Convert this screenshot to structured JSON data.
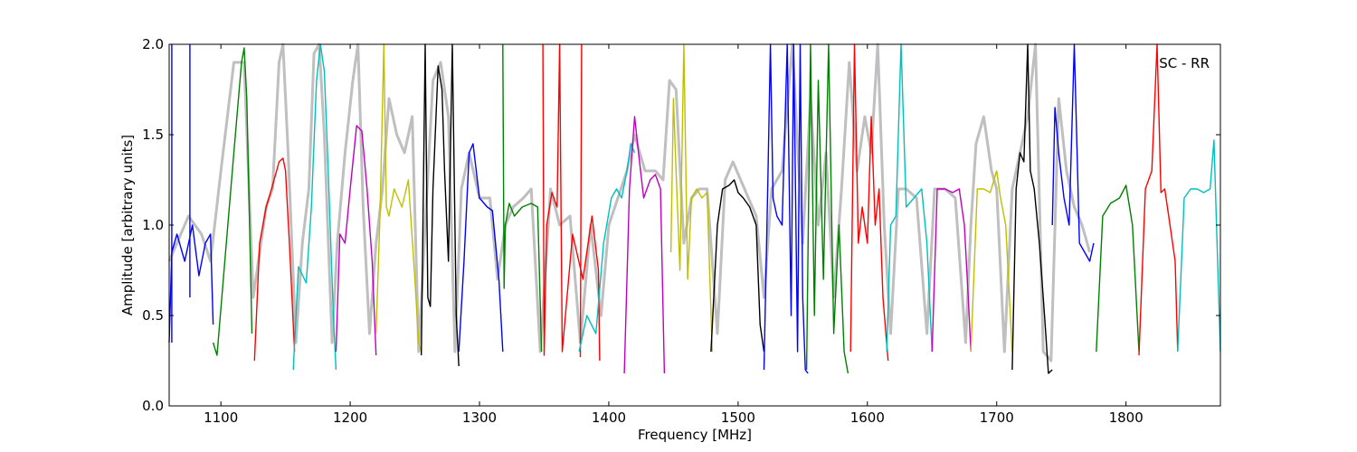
{
  "chart_data": {
    "type": "line",
    "title": "",
    "xlabel": "Frequency [MHz]",
    "ylabel": "Amplitude [arbitrary units]",
    "annotation": "SC - RR",
    "annotation_position": "top-right",
    "xlim": [
      1060,
      1873
    ],
    "ylim": [
      0.0,
      2.0
    ],
    "x_ticks": [
      1100,
      1200,
      1300,
      1400,
      1500,
      1600,
      1700,
      1800
    ],
    "x_tick_labels": [
      "1100",
      "1200",
      "1300",
      "1400",
      "1500",
      "1600",
      "1700",
      "1800"
    ],
    "y_ticks": [
      0.0,
      0.5,
      1.0,
      1.5,
      2.0
    ],
    "y_tick_labels": [
      "0.0",
      "0.5",
      "1.0",
      "1.5",
      "2.0"
    ],
    "grid": false,
    "colors": {
      "blue": "#0000ff",
      "green": "#008000",
      "red": "#ff0000",
      "cyan": "#00bfbf",
      "magenta": "#bf00bf",
      "olive": "#bfbf00",
      "black": "#000000",
      "envelope": "#bfbfbf"
    },
    "envelope": {
      "x": [
        1060,
        1075,
        1085,
        1092,
        1100,
        1110,
        1118,
        1125,
        1135,
        1140,
        1145,
        1148,
        1152,
        1158,
        1163,
        1168,
        1172,
        1176,
        1180,
        1186,
        1190,
        1196,
        1202,
        1206,
        1210,
        1215,
        1220,
        1225,
        1230,
        1236,
        1242,
        1248,
        1253,
        1258,
        1264,
        1270,
        1276,
        1281,
        1286,
        1292,
        1300,
        1308,
        1314,
        1320,
        1326,
        1334,
        1340,
        1347,
        1355,
        1362,
        1370,
        1378,
        1386,
        1394,
        1400,
        1407,
        1414,
        1420,
        1428,
        1436,
        1442,
        1447,
        1452,
        1458,
        1464,
        1470,
        1476,
        1484,
        1490,
        1496,
        1502,
        1508,
        1514,
        1520,
        1526,
        1534,
        1542,
        1550,
        1556,
        1562,
        1568,
        1574,
        1580,
        1586,
        1592,
        1598,
        1603,
        1608,
        1613,
        1618,
        1624,
        1630,
        1638,
        1646,
        1652,
        1660,
        1668,
        1676,
        1680,
        1684,
        1690,
        1696,
        1700,
        1706,
        1712,
        1718,
        1724,
        1730,
        1736,
        1742,
        1748,
        1754,
        1760,
        1766,
        1772
      ],
      "y": [
        0.8,
        1.05,
        0.95,
        0.8,
        1.3,
        1.9,
        1.9,
        0.6,
        1.1,
        1.2,
        1.9,
        2.0,
        1.4,
        0.35,
        0.9,
        1.2,
        1.95,
        2.0,
        1.5,
        0.35,
        0.9,
        1.4,
        1.8,
        2.0,
        1.1,
        0.4,
        0.9,
        1.2,
        1.7,
        1.5,
        1.4,
        1.6,
        0.3,
        1.0,
        1.8,
        1.9,
        1.6,
        0.3,
        1.2,
        1.4,
        1.15,
        1.15,
        0.7,
        1.0,
        1.1,
        1.15,
        1.2,
        0.3,
        1.2,
        1.0,
        1.05,
        0.35,
        1.0,
        0.5,
        1.0,
        1.15,
        1.3,
        1.5,
        1.3,
        1.3,
        1.25,
        1.8,
        1.75,
        0.9,
        1.15,
        1.2,
        1.2,
        0.4,
        1.25,
        1.35,
        1.25,
        1.15,
        1.05,
        0.6,
        1.2,
        1.3,
        2.0,
        0.9,
        1.7,
        1.0,
        1.4,
        0.6,
        1.2,
        1.9,
        1.3,
        1.6,
        1.4,
        2.0,
        1.0,
        0.4,
        1.2,
        1.2,
        1.15,
        0.4,
        1.2,
        1.2,
        1.15,
        0.35,
        1.0,
        1.45,
        1.6,
        1.3,
        1.2,
        0.3,
        1.2,
        1.4,
        1.6,
        2.0,
        0.3,
        0.25,
        1.7,
        1.3,
        1.1,
        1.0,
        0.85
      ]
    },
    "series": [
      {
        "color": "blue",
        "x": [
          1060,
          1062,
          1066,
          1072,
          1078,
          1083,
          1088,
          1092,
          1094
        ],
        "y": [
          0.35,
          0.85,
          0.95,
          0.8,
          1.0,
          0.72,
          0.9,
          0.95,
          0.45
        ]
      },
      {
        "color": "blue",
        "x": [
          1062,
          1062
        ],
        "y": [
          0.35,
          2.0
        ]
      },
      {
        "color": "blue",
        "x": [
          1076,
          1076
        ],
        "y": [
          0.6,
          2.0
        ]
      },
      {
        "color": "green",
        "x": [
          1094,
          1097,
          1103,
          1110,
          1116,
          1118,
          1120,
          1124
        ],
        "y": [
          0.35,
          0.28,
          0.8,
          1.4,
          1.9,
          1.98,
          1.7,
          0.4
        ]
      },
      {
        "color": "red",
        "x": [
          1126,
          1130,
          1135,
          1140,
          1145,
          1148,
          1150,
          1153,
          1157
        ],
        "y": [
          0.25,
          0.9,
          1.1,
          1.22,
          1.35,
          1.37,
          1.3,
          0.9,
          0.3
        ]
      },
      {
        "color": "cyan",
        "x": [
          1156,
          1160,
          1166,
          1170,
          1174,
          1177,
          1180,
          1183,
          1187,
          1189
        ],
        "y": [
          0.2,
          0.77,
          0.68,
          1.1,
          1.8,
          2.0,
          1.85,
          1.3,
          0.5,
          0.2
        ]
      },
      {
        "color": "magenta",
        "x": [
          1189,
          1192,
          1196,
          1200,
          1205,
          1209,
          1213,
          1217,
          1220
        ],
        "y": [
          0.3,
          0.95,
          0.9,
          1.2,
          1.55,
          1.52,
          1.2,
          0.8,
          0.28
        ]
      },
      {
        "color": "olive",
        "x": [
          1220,
          1223,
          1226,
          1228,
          1230,
          1234,
          1240,
          1245,
          1250,
          1253,
          1255
        ],
        "y": [
          0.4,
          1.05,
          2.0,
          1.1,
          1.05,
          1.2,
          1.1,
          1.25,
          0.7,
          0.35,
          0.3
        ]
      },
      {
        "color": "black",
        "x": [
          1255,
          1258,
          1260,
          1262,
          1264,
          1268,
          1271,
          1273,
          1276,
          1279,
          1282,
          1284
        ],
        "y": [
          0.28,
          2.0,
          0.6,
          0.55,
          1.2,
          1.88,
          1.75,
          1.3,
          0.8,
          2.0,
          0.5,
          0.22
        ]
      },
      {
        "color": "blue",
        "x": [
          1284,
          1288,
          1292,
          1295,
          1300,
          1306,
          1310,
          1315,
          1318
        ],
        "y": [
          0.3,
          0.8,
          1.4,
          1.45,
          1.15,
          1.1,
          1.08,
          0.7,
          0.3
        ]
      },
      {
        "color": "green",
        "x": [
          1318,
          1319,
          1320,
          1323,
          1327,
          1333,
          1340,
          1345,
          1348
        ],
        "y": [
          2.0,
          0.65,
          1.0,
          1.12,
          1.05,
          1.1,
          1.12,
          1.1,
          0.3
        ]
      },
      {
        "color": "red",
        "x": [
          1349,
          1350,
          1352,
          1356,
          1360,
          1362,
          1364,
          1372,
          1380,
          1387,
          1392,
          1393
        ],
        "y": [
          2.0,
          0.28,
          1.0,
          1.18,
          1.1,
          2.0,
          0.3,
          0.95,
          0.7,
          1.05,
          0.75,
          0.25
        ]
      },
      {
        "color": "red",
        "x": [
          1378,
          1379
        ],
        "y": [
          0.27,
          2.0
        ]
      },
      {
        "color": "cyan",
        "x": [
          1377,
          1383,
          1390,
          1396,
          1402,
          1406,
          1410,
          1414,
          1417,
          1420
        ],
        "y": [
          0.3,
          0.5,
          0.4,
          0.9,
          1.15,
          1.2,
          1.15,
          1.3,
          1.45,
          1.4
        ]
      },
      {
        "color": "magenta",
        "x": [
          1412,
          1416,
          1420,
          1423,
          1427,
          1432,
          1436,
          1440,
          1443
        ],
        "y": [
          0.18,
          1.2,
          1.6,
          1.4,
          1.15,
          1.25,
          1.28,
          1.2,
          0.18
        ]
      },
      {
        "color": "olive",
        "x": [
          1448,
          1450,
          1452,
          1455,
          1458,
          1461,
          1464,
          1468,
          1472,
          1476,
          1480
        ],
        "y": [
          0.85,
          1.7,
          1.3,
          0.75,
          2.0,
          0.7,
          1.15,
          1.2,
          1.15,
          1.18,
          0.3
        ]
      },
      {
        "color": "black",
        "x": [
          1479,
          1484,
          1488,
          1493,
          1497,
          1500,
          1504,
          1509,
          1514,
          1517,
          1520
        ],
        "y": [
          0.3,
          1.0,
          1.2,
          1.22,
          1.25,
          1.18,
          1.15,
          1.1,
          1.0,
          0.45,
          0.3
        ]
      },
      {
        "color": "blue",
        "x": [
          1520,
          1523,
          1525,
          1527,
          1530,
          1534,
          1538,
          1541,
          1543,
          1546,
          1548,
          1550,
          1552,
          1554
        ],
        "y": [
          0.2,
          1.25,
          2.0,
          1.15,
          1.05,
          1.0,
          2.0,
          0.5,
          2.0,
          0.3,
          2.0,
          0.6,
          0.2,
          0.18
        ]
      },
      {
        "color": "green",
        "x": [
          1553,
          1556,
          1559,
          1562,
          1566,
          1570,
          1574,
          1578,
          1582,
          1585
        ],
        "y": [
          0.2,
          2.0,
          0.5,
          1.8,
          0.7,
          2.0,
          0.4,
          1.0,
          0.3,
          0.18
        ]
      },
      {
        "color": "red",
        "x": [
          1587,
          1590,
          1593,
          1596,
          1600,
          1603,
          1606,
          1609,
          1612,
          1616
        ],
        "y": [
          0.3,
          2.0,
          0.9,
          1.1,
          0.9,
          1.6,
          1.0,
          1.2,
          0.6,
          0.25
        ]
      },
      {
        "color": "cyan",
        "x": [
          1615,
          1618,
          1622,
          1626,
          1630,
          1636,
          1642,
          1646,
          1650
        ],
        "y": [
          0.3,
          1.0,
          1.05,
          2.0,
          1.1,
          1.15,
          1.2,
          0.9,
          0.3
        ]
      },
      {
        "color": "magenta",
        "x": [
          1650,
          1654,
          1660,
          1666,
          1671,
          1675,
          1678,
          1680
        ],
        "y": [
          0.3,
          1.2,
          1.2,
          1.18,
          1.2,
          1.0,
          0.6,
          0.3
        ]
      },
      {
        "color": "olive",
        "x": [
          1680,
          1685,
          1690,
          1695,
          1700,
          1703,
          1707,
          1712
        ],
        "y": [
          0.3,
          1.2,
          1.2,
          1.18,
          1.3,
          1.15,
          1.0,
          0.3
        ]
      },
      {
        "color": "black",
        "x": [
          1712,
          1715,
          1718,
          1721,
          1724,
          1726,
          1729,
          1733,
          1737,
          1740,
          1743
        ],
        "y": [
          0.2,
          1.2,
          1.4,
          1.35,
          2.0,
          1.3,
          1.2,
          0.9,
          0.5,
          0.18,
          0.2
        ]
      },
      {
        "color": "blue",
        "x": [
          1743,
          1745,
          1748,
          1752,
          1756,
          1760,
          1764,
          1768,
          1772,
          1775
        ],
        "y": [
          1.0,
          1.65,
          1.4,
          1.15,
          1.0,
          2.0,
          0.9,
          0.85,
          0.8,
          0.9
        ]
      },
      {
        "color": "green",
        "x": [
          1777,
          1782,
          1788,
          1795,
          1800,
          1805,
          1810
        ],
        "y": [
          0.3,
          1.05,
          1.12,
          1.15,
          1.22,
          1.0,
          0.3
        ]
      },
      {
        "color": "red",
        "x": [
          1810,
          1815,
          1820,
          1824,
          1827,
          1830,
          1834,
          1838,
          1840
        ],
        "y": [
          0.28,
          1.2,
          1.3,
          2.0,
          1.18,
          1.2,
          1.0,
          0.8,
          0.3
        ]
      },
      {
        "color": "cyan",
        "x": [
          1840,
          1845,
          1850,
          1855,
          1860,
          1865,
          1868,
          1870,
          1873
        ],
        "y": [
          0.3,
          1.15,
          1.2,
          1.2,
          1.18,
          1.2,
          1.47,
          1.0,
          0.3
        ]
      }
    ]
  }
}
